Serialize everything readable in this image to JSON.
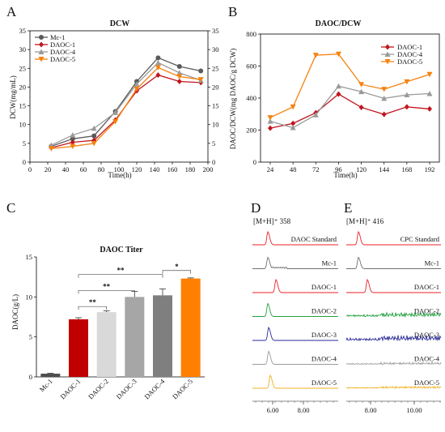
{
  "panels": {
    "A": {
      "letter": "A"
    },
    "B": {
      "letter": "B"
    },
    "C": {
      "letter": "C"
    },
    "D": {
      "letter": "D",
      "ion_label": "[M+H]⁺ 358"
    },
    "E": {
      "letter": "E",
      "ion_label": "[M+H]⁺ 416"
    }
  },
  "chart_data": [
    {
      "id": "A",
      "type": "line",
      "title": "DCW",
      "xlabel": "Time(h)",
      "ylabel": "DCW(mg/mL)",
      "xlim": [
        0,
        200
      ],
      "ylim": [
        0,
        35
      ],
      "xticks": [
        0,
        20,
        40,
        60,
        80,
        100,
        120,
        140,
        160,
        180,
        200
      ],
      "yticks": [
        0,
        5,
        10,
        15,
        20,
        25,
        30,
        35
      ],
      "right_axis_ticks": [
        0,
        5,
        10,
        15,
        20,
        25,
        30,
        35
      ],
      "legend_position": "top-left",
      "x": [
        24,
        48,
        72,
        96,
        120,
        144,
        168,
        192
      ],
      "series": [
        {
          "name": "Mc-1",
          "color": "#5a5a5a",
          "marker": "circle",
          "values": [
            4.2,
            6.2,
            7.0,
            13.5,
            21.5,
            27.8,
            25.5,
            24.3
          ]
        },
        {
          "name": "DAOC-1",
          "color": "#c0161e",
          "marker": "diamond",
          "values": [
            3.8,
            5.3,
            5.8,
            11.2,
            19.0,
            23.2,
            21.5,
            21.2
          ]
        },
        {
          "name": "DAOC-4",
          "color": "#9a9a9a",
          "marker": "triangle-up",
          "values": [
            4.5,
            7.2,
            9.0,
            13.2,
            20.8,
            26.5,
            23.8,
            21.8
          ]
        },
        {
          "name": "DAOC-5",
          "color": "#f5820f",
          "marker": "triangle-down",
          "values": [
            3.6,
            4.2,
            5.0,
            10.8,
            19.5,
            25.2,
            22.8,
            22.0
          ]
        }
      ]
    },
    {
      "id": "B",
      "type": "line",
      "title": "DAOC/DCW",
      "xlabel": "Time(h)",
      "ylabel": "DAOC/DCW(mg DAOC/g DCW)",
      "ylim": [
        0,
        800
      ],
      "yticks": [
        0,
        200,
        400,
        600,
        800
      ],
      "categories": [
        "24",
        "48",
        "72",
        "96",
        "120",
        "144",
        "168",
        "192"
      ],
      "legend_position": "top-right",
      "series": [
        {
          "name": "DAOC-1",
          "color": "#c0161e",
          "marker": "diamond",
          "values": [
            212,
            242,
            308,
            425,
            342,
            298,
            345,
            332
          ]
        },
        {
          "name": "DAOC-4",
          "color": "#9a9a9a",
          "marker": "triangle-up",
          "values": [
            255,
            215,
            295,
            475,
            440,
            398,
            420,
            428
          ]
        },
        {
          "name": "DAOC-5",
          "color": "#f5820f",
          "marker": "triangle-down",
          "values": [
            278,
            345,
            668,
            675,
            485,
            455,
            502,
            548
          ]
        }
      ]
    },
    {
      "id": "C",
      "type": "bar",
      "title": "DAOC Titer",
      "xlabel": "",
      "ylabel": "DAOC(g/L)",
      "ylim": [
        0,
        15
      ],
      "yticks": [
        0,
        5,
        10,
        15
      ],
      "categories": [
        "Mc-1",
        "DAOC-1",
        "DAOC-2",
        "DAOC-3",
        "DAOC-4",
        "DAOC-5"
      ],
      "values": [
        0.4,
        7.2,
        8.1,
        10.0,
        10.2,
        12.3
      ],
      "errors": [
        0.05,
        0.2,
        0.15,
        0.7,
        0.8,
        0.08
      ],
      "colors": [
        "#4d4d4d",
        "#c00000",
        "#d9d9d9",
        "#a6a6a6",
        "#7f7f7f",
        "#ff8000"
      ],
      "significance": [
        {
          "from": "DAOC-1",
          "to": "DAOC-2",
          "label": "**",
          "level": 8.8
        },
        {
          "from": "DAOC-1",
          "to": "DAOC-3",
          "label": "**",
          "level": 10.8
        },
        {
          "from": "DAOC-1",
          "to": "DAOC-4",
          "label": "**",
          "level": 12.8
        },
        {
          "from": "DAOC-4",
          "to": "DAOC-5",
          "label": "*",
          "level": 13.3
        }
      ]
    },
    {
      "id": "D",
      "type": "line",
      "title": "",
      "xlabel": "",
      "ylabel": "",
      "xticks": [
        "6.00",
        "8.00"
      ],
      "traces": [
        {
          "name": "DAOC Standard",
          "color": "#e8222a"
        },
        {
          "name": "Mc-1",
          "color": "#707070"
        },
        {
          "name": "DAOC-1",
          "color": "#e8222a"
        },
        {
          "name": "DAOC-2",
          "color": "#22a040"
        },
        {
          "name": "DAOC-3",
          "color": "#2a2a9a"
        },
        {
          "name": "DAOC-4",
          "color": "#9a9a9a"
        },
        {
          "name": "DAOC-5",
          "color": "#f0b020"
        }
      ]
    },
    {
      "id": "E",
      "type": "line",
      "title": "",
      "xlabel": "",
      "ylabel": "",
      "xticks": [
        "8.00",
        "10.00"
      ],
      "traces": [
        {
          "name": "CPC Standard",
          "color": "#e8222a"
        },
        {
          "name": "Mc-1",
          "color": "#707070"
        },
        {
          "name": "DAOC-1",
          "color": "#e8222a"
        },
        {
          "name": "DAOC-2",
          "color": "#22a040"
        },
        {
          "name": "DAOC-3",
          "color": "#2a2a9a"
        },
        {
          "name": "DAOC-4",
          "color": "#9a9a9a"
        },
        {
          "name": "DAOC-5",
          "color": "#f0b020"
        }
      ]
    }
  ]
}
